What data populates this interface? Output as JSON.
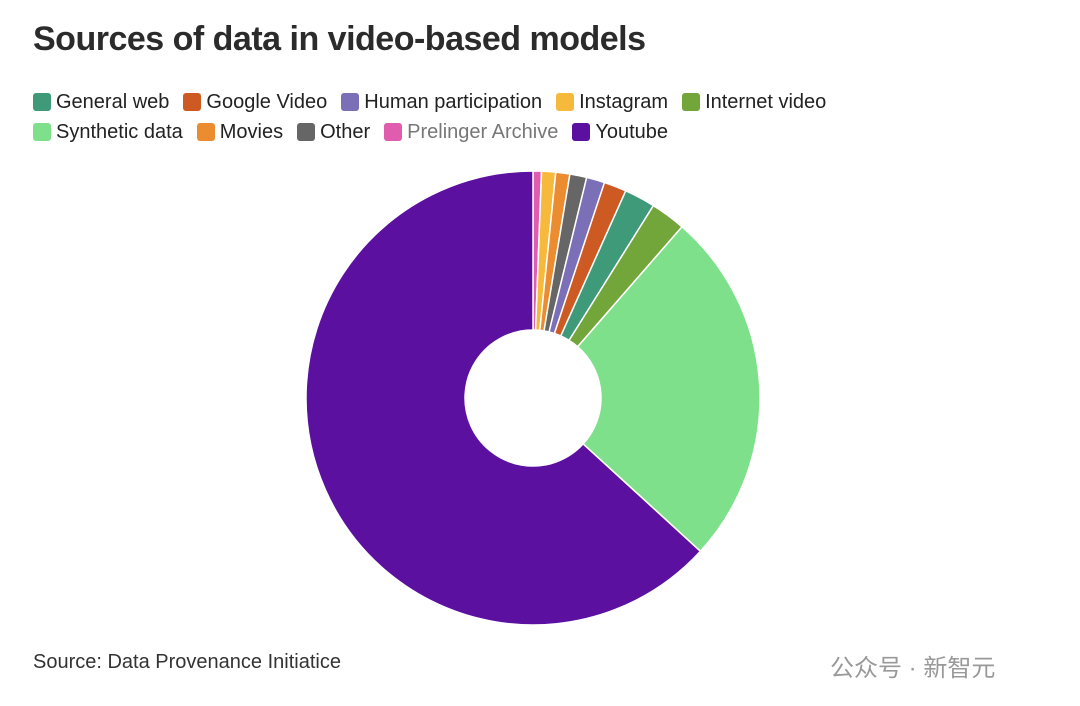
{
  "chart_data": {
    "type": "donut",
    "title": "Sources of data in video-based models",
    "categories": [
      "General web",
      "Google Video",
      "Human participation",
      "Instagram",
      "Internet video",
      "Synthetic data",
      "Movies",
      "Other",
      "Prelinger Archive",
      "Youtube"
    ],
    "values": [
      2.2,
      1.6,
      1.3,
      1.0,
      2.5,
      25.4,
      1.0,
      1.2,
      0.6,
      63.2
    ],
    "colors": [
      "#3f9a7a",
      "#cc5a22",
      "#7b6fb8",
      "#f6b93b",
      "#72a53a",
      "#7ee08a",
      "#eb8c30",
      "#666666",
      "#e05cae",
      "#5b10a0"
    ],
    "source": "Source: Data Provenance Initiatice"
  },
  "watermark": "公众号 · 新智元"
}
